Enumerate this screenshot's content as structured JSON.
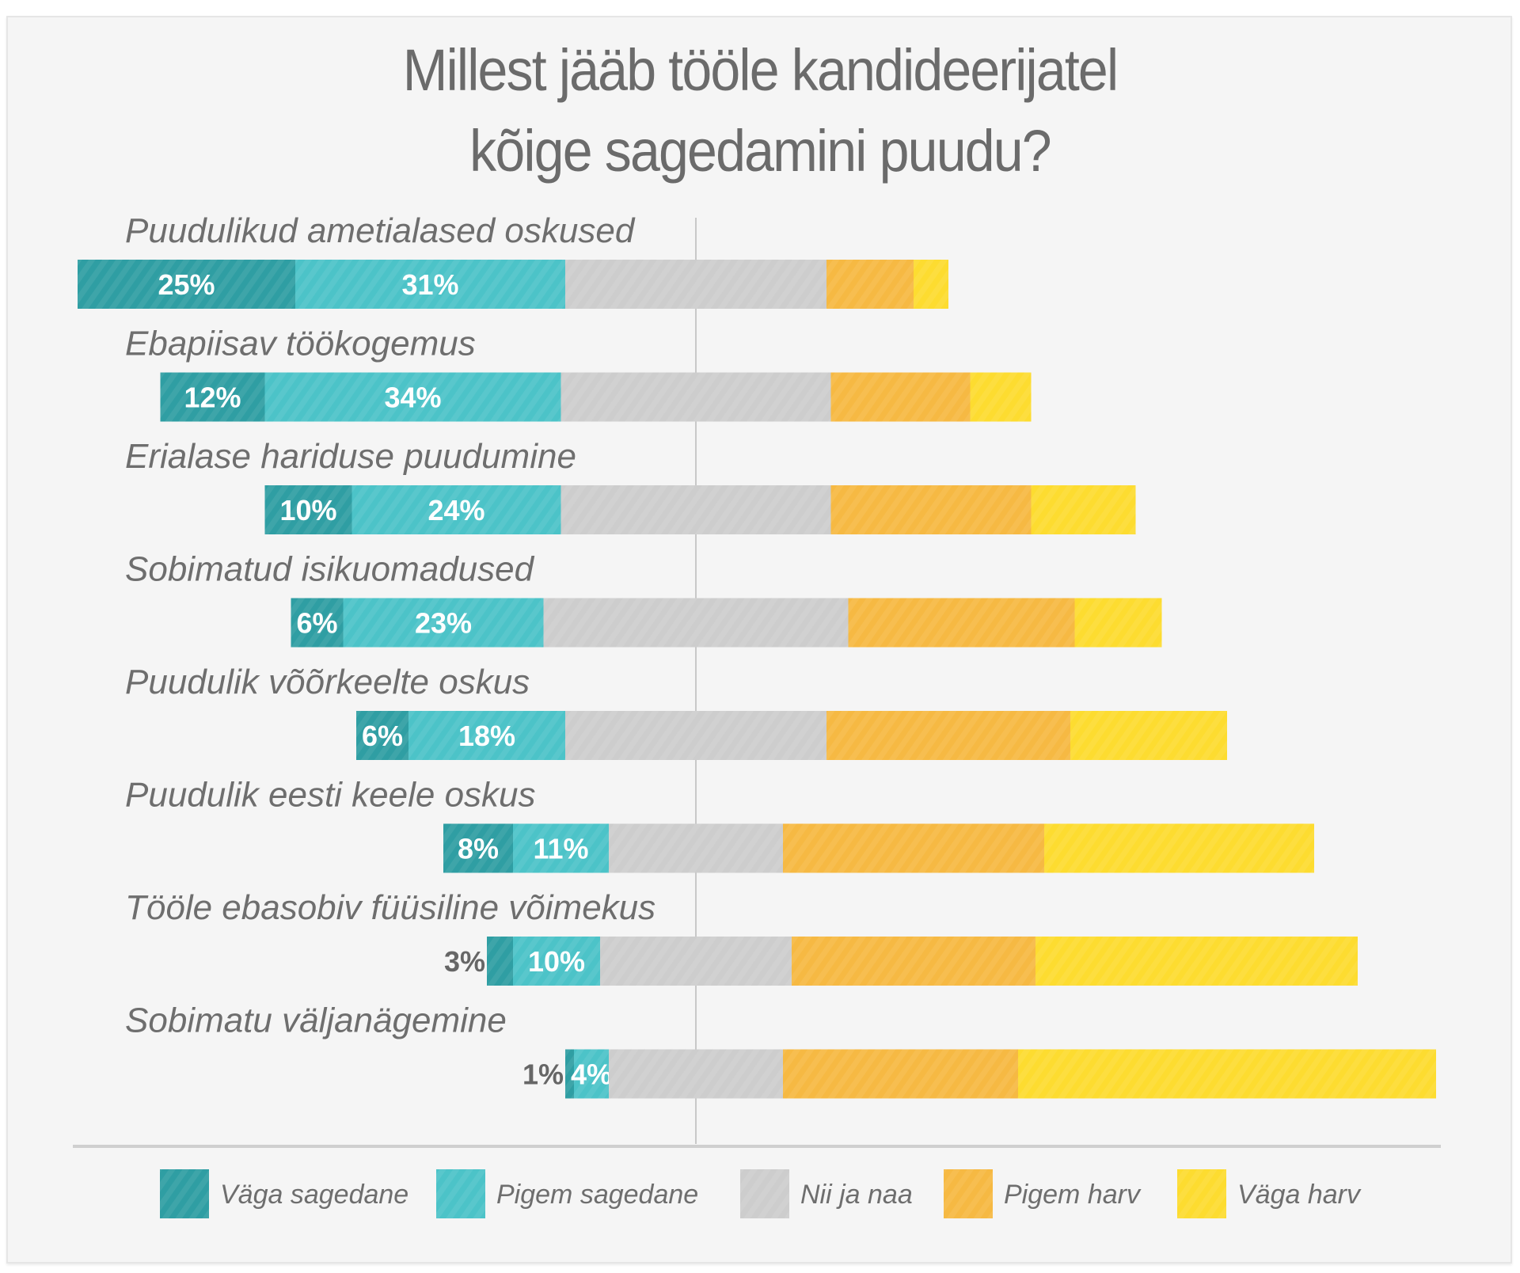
{
  "chart_data": {
    "type": "bar",
    "orientation": "horizontal",
    "stacked": true,
    "diverging": true,
    "title": "Millest jääb tööle kandideerijatel kõige sagedamini puudu?",
    "title_lines": [
      "Millest jääb tööle kandideerijatel",
      "kõige sagedamini puudu?"
    ],
    "xlabel": "",
    "ylabel": "",
    "unit": "%",
    "legend_position": "bottom",
    "grid": false,
    "center_line": true,
    "categories": [
      "Puudulikud ametialased oskused",
      "Ebapiisav töökogemus",
      "Erialase hariduse puudumine",
      "Sobimatud isikuomadused",
      "Puudulik võõrkeelte oskus",
      "Puudulik eesti keele oskus",
      "Tööle ebasobiv füüsiline võimekus",
      "Sobimatu väljanägemine"
    ],
    "series": [
      {
        "name": "Väga sagedane",
        "color": "#2f9ea3",
        "values": [
          25,
          12,
          10,
          6,
          6,
          8,
          3,
          1
        ],
        "labels": [
          "25%",
          "12%",
          "10%",
          "6%",
          "6%",
          "8%",
          "3%",
          "1%"
        ]
      },
      {
        "name": "Pigem sagedane",
        "color": "#4cc3c8",
        "values": [
          31,
          34,
          24,
          23,
          18,
          11,
          10,
          4
        ],
        "labels": [
          "31%",
          "34%",
          "24%",
          "23%",
          "18%",
          "11%",
          "10%",
          "4%"
        ]
      },
      {
        "name": "Nii ja naa",
        "color": "#cdcdcd",
        "values": [
          30,
          31,
          31,
          35,
          30,
          20,
          22,
          20
        ]
      },
      {
        "name": "Pigem harv",
        "color": "#f6b943",
        "values": [
          10,
          16,
          23,
          26,
          28,
          30,
          28,
          27
        ]
      },
      {
        "name": "Väga harv",
        "color": "#fddc30",
        "values": [
          4,
          7,
          12,
          10,
          18,
          31,
          37,
          48
        ]
      }
    ]
  }
}
